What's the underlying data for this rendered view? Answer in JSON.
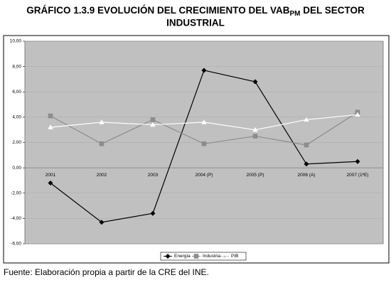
{
  "chart_data": {
    "type": "line",
    "title": [
      "GRÁFICO 1.3.9 EVOLUCIÓN DEL CRECIMIENTO DEL VAB",
      "PM",
      " DEL SECTOR",
      "INDUSTRIAL"
    ],
    "source": "Fuente: Elaboración propia a partir de la CRE del INE.",
    "categories": [
      "2001",
      "2002",
      "2003",
      "2004 (P)",
      "2005 (P)",
      "2006 (A)",
      "2007 (1ªE)"
    ],
    "series": [
      {
        "name": "Energía",
        "color": "#000000",
        "marker": "diamond",
        "values": [
          -1.2,
          -4.3,
          -3.6,
          7.7,
          6.8,
          0.3,
          0.5
        ]
      },
      {
        "name": "Industria",
        "color": "#8c8c8c",
        "marker": "square",
        "values": [
          4.1,
          1.9,
          3.8,
          1.9,
          2.5,
          1.8,
          4.4
        ]
      },
      {
        "name": "PIB",
        "color": "#ffffff",
        "marker": "triangle",
        "values": [
          3.2,
          3.6,
          3.4,
          3.6,
          3.0,
          3.8,
          4.2
        ]
      }
    ],
    "ylim": [
      -6,
      10
    ],
    "yticks": [
      {
        "value": -6,
        "label": "-6,00"
      },
      {
        "value": -4,
        "label": "-4,00"
      },
      {
        "value": -2,
        "label": "-2,00"
      },
      {
        "value": 0,
        "label": "0,00"
      },
      {
        "value": 2,
        "label": "2,00"
      },
      {
        "value": 4,
        "label": "4,00"
      },
      {
        "value": 6,
        "label": "6,00"
      },
      {
        "value": 8,
        "label": "8,00"
      },
      {
        "value": 10,
        "label": "10,00"
      }
    ],
    "grid": true,
    "legend": "bottom"
  }
}
